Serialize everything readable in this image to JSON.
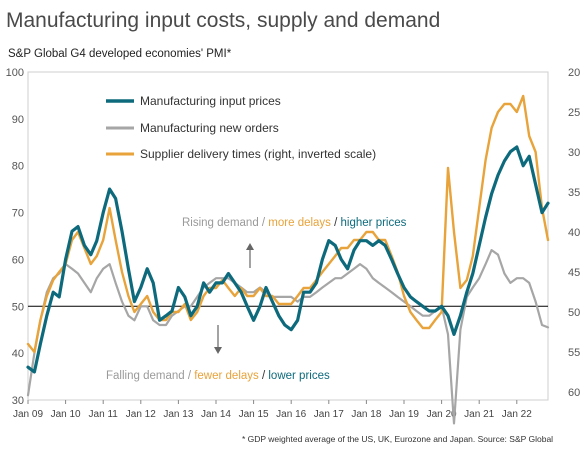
{
  "title": "Manufacturing input costs, supply and demand",
  "subtitle": "S&P Global G4 developed economies' PMI*",
  "footnote": "* GDP weighted average of the US, UK, Eurozone and Japan.   Source: S&P Global",
  "annotations": {
    "top": {
      "part1": "Rising demand / ",
      "part2": "more delays",
      "part3": " / ",
      "part4": "higher prices"
    },
    "bottom": {
      "part1": "Falling demand / ",
      "part2": "fewer delays",
      "part3": " / ",
      "part4": "lower prices"
    }
  },
  "chart_data": {
    "type": "line",
    "x_tick_labels": [
      "Jan 09",
      "Jan 10",
      "Jan 11",
      "Jan 12",
      "Jan 13",
      "Jan 14",
      "Jan 15",
      "Jan 16",
      "Jan 17",
      "Jan 18",
      "Jan 19",
      "Jan 20",
      "Jan 21",
      "Jan 22"
    ],
    "x_range": [
      2009.0,
      2022.83
    ],
    "left_axis": {
      "ylim": [
        30,
        100
      ],
      "ticks": [
        30,
        40,
        50,
        60,
        70,
        80,
        90,
        100
      ]
    },
    "right_axis": {
      "ylim": [
        61,
        20
      ],
      "ticks": [
        20,
        25,
        30,
        35,
        40,
        45,
        50,
        55,
        60
      ],
      "inverted": true
    },
    "reference_line": 50,
    "colors": {
      "input": "#0d6a7c",
      "orders": "#a6a6a6",
      "delivery": "#e8a33a",
      "falling_demand": "#9a9a9a",
      "reference": "#000000"
    },
    "series": [
      {
        "name": "Manufacturing input prices",
        "key": "input",
        "axis": "left",
        "points": [
          [
            2009.0,
            37
          ],
          [
            2009.17,
            36
          ],
          [
            2009.33,
            42
          ],
          [
            2009.5,
            48
          ],
          [
            2009.67,
            53
          ],
          [
            2009.83,
            52
          ],
          [
            2010.0,
            60
          ],
          [
            2010.17,
            66
          ],
          [
            2010.33,
            67
          ],
          [
            2010.5,
            63
          ],
          [
            2010.67,
            61
          ],
          [
            2010.83,
            64
          ],
          [
            2011.0,
            70
          ],
          [
            2011.17,
            75
          ],
          [
            2011.33,
            73
          ],
          [
            2011.5,
            66
          ],
          [
            2011.67,
            58
          ],
          [
            2011.83,
            51
          ],
          [
            2012.0,
            54
          ],
          [
            2012.17,
            58
          ],
          [
            2012.33,
            55
          ],
          [
            2012.5,
            47
          ],
          [
            2012.67,
            48
          ],
          [
            2012.83,
            49
          ],
          [
            2013.0,
            54
          ],
          [
            2013.17,
            52
          ],
          [
            2013.33,
            48
          ],
          [
            2013.5,
            50
          ],
          [
            2013.67,
            55
          ],
          [
            2013.83,
            53
          ],
          [
            2014.0,
            55
          ],
          [
            2014.17,
            55
          ],
          [
            2014.33,
            57
          ],
          [
            2014.5,
            55
          ],
          [
            2014.67,
            53
          ],
          [
            2014.83,
            50
          ],
          [
            2015.0,
            47
          ],
          [
            2015.17,
            50
          ],
          [
            2015.33,
            54
          ],
          [
            2015.5,
            51
          ],
          [
            2015.67,
            48
          ],
          [
            2015.83,
            46
          ],
          [
            2016.0,
            45
          ],
          [
            2016.17,
            47
          ],
          [
            2016.33,
            53
          ],
          [
            2016.5,
            53
          ],
          [
            2016.67,
            55
          ],
          [
            2016.83,
            60
          ],
          [
            2017.0,
            64
          ],
          [
            2017.17,
            63
          ],
          [
            2017.33,
            60
          ],
          [
            2017.5,
            58
          ],
          [
            2017.67,
            62
          ],
          [
            2017.83,
            64
          ],
          [
            2018.0,
            64
          ],
          [
            2018.17,
            63
          ],
          [
            2018.33,
            64
          ],
          [
            2018.5,
            63
          ],
          [
            2018.67,
            60
          ],
          [
            2018.83,
            57
          ],
          [
            2019.0,
            54
          ],
          [
            2019.17,
            52
          ],
          [
            2019.33,
            51
          ],
          [
            2019.5,
            50
          ],
          [
            2019.67,
            49
          ],
          [
            2019.83,
            49
          ],
          [
            2020.0,
            50
          ],
          [
            2020.17,
            48
          ],
          [
            2020.33,
            44
          ],
          [
            2020.5,
            48
          ],
          [
            2020.67,
            53
          ],
          [
            2020.83,
            57
          ],
          [
            2021.0,
            63
          ],
          [
            2021.17,
            69
          ],
          [
            2021.33,
            74
          ],
          [
            2021.5,
            78
          ],
          [
            2021.67,
            81
          ],
          [
            2021.83,
            83
          ],
          [
            2022.0,
            84
          ],
          [
            2022.17,
            80
          ],
          [
            2022.33,
            82
          ],
          [
            2022.5,
            76
          ],
          [
            2022.67,
            70
          ],
          [
            2022.83,
            72
          ]
        ]
      },
      {
        "name": "Manufacturing new orders",
        "key": "orders",
        "axis": "left",
        "points": [
          [
            2009.0,
            31
          ],
          [
            2009.17,
            40
          ],
          [
            2009.33,
            47
          ],
          [
            2009.5,
            53
          ],
          [
            2009.67,
            56
          ],
          [
            2009.83,
            57
          ],
          [
            2010.0,
            59
          ],
          [
            2010.17,
            58
          ],
          [
            2010.33,
            57
          ],
          [
            2010.5,
            55
          ],
          [
            2010.67,
            53
          ],
          [
            2010.83,
            56
          ],
          [
            2011.0,
            58
          ],
          [
            2011.17,
            59
          ],
          [
            2011.33,
            55
          ],
          [
            2011.5,
            51
          ],
          [
            2011.67,
            48
          ],
          [
            2011.83,
            47
          ],
          [
            2012.0,
            50
          ],
          [
            2012.17,
            50
          ],
          [
            2012.33,
            47
          ],
          [
            2012.5,
            46
          ],
          [
            2012.67,
            46
          ],
          [
            2012.83,
            48
          ],
          [
            2013.0,
            49
          ],
          [
            2013.17,
            50
          ],
          [
            2013.33,
            50
          ],
          [
            2013.5,
            52
          ],
          [
            2013.67,
            54
          ],
          [
            2013.83,
            55
          ],
          [
            2014.0,
            56
          ],
          [
            2014.17,
            56
          ],
          [
            2014.33,
            56
          ],
          [
            2014.5,
            55
          ],
          [
            2014.67,
            54
          ],
          [
            2014.83,
            53
          ],
          [
            2015.0,
            53
          ],
          [
            2015.17,
            54
          ],
          [
            2015.33,
            53
          ],
          [
            2015.5,
            52
          ],
          [
            2015.67,
            52
          ],
          [
            2015.83,
            52
          ],
          [
            2016.0,
            52
          ],
          [
            2016.17,
            51
          ],
          [
            2016.33,
            52
          ],
          [
            2016.5,
            52
          ],
          [
            2016.67,
            53
          ],
          [
            2016.83,
            54
          ],
          [
            2017.0,
            55
          ],
          [
            2017.17,
            56
          ],
          [
            2017.33,
            56
          ],
          [
            2017.5,
            57
          ],
          [
            2017.67,
            58
          ],
          [
            2017.83,
            59
          ],
          [
            2018.0,
            58
          ],
          [
            2018.17,
            56
          ],
          [
            2018.33,
            55
          ],
          [
            2018.5,
            54
          ],
          [
            2018.67,
            53
          ],
          [
            2018.83,
            52
          ],
          [
            2019.0,
            51
          ],
          [
            2019.17,
            50
          ],
          [
            2019.33,
            49
          ],
          [
            2019.5,
            48
          ],
          [
            2019.67,
            48
          ],
          [
            2019.83,
            49
          ],
          [
            2020.0,
            50
          ],
          [
            2020.17,
            44
          ],
          [
            2020.33,
            25
          ],
          [
            2020.5,
            45
          ],
          [
            2020.67,
            52
          ],
          [
            2020.83,
            54
          ],
          [
            2021.0,
            56
          ],
          [
            2021.17,
            59
          ],
          [
            2021.33,
            62
          ],
          [
            2021.5,
            61
          ],
          [
            2021.67,
            57
          ],
          [
            2021.83,
            55
          ],
          [
            2022.0,
            56
          ],
          [
            2022.17,
            56
          ],
          [
            2022.33,
            55
          ],
          [
            2022.5,
            51
          ],
          [
            2022.67,
            46
          ],
          [
            2022.83,
            45.5
          ]
        ]
      },
      {
        "name": "Supplier delivery times (right, inverted scale)",
        "key": "delivery",
        "axis": "right",
        "points": [
          [
            2009.0,
            54
          ],
          [
            2009.17,
            55
          ],
          [
            2009.33,
            51
          ],
          [
            2009.5,
            48
          ],
          [
            2009.67,
            46
          ],
          [
            2009.83,
            45
          ],
          [
            2010.0,
            44
          ],
          [
            2010.17,
            41
          ],
          [
            2010.33,
            40
          ],
          [
            2010.5,
            42
          ],
          [
            2010.67,
            44
          ],
          [
            2010.83,
            43
          ],
          [
            2011.0,
            41
          ],
          [
            2011.17,
            37
          ],
          [
            2011.33,
            41
          ],
          [
            2011.5,
            45
          ],
          [
            2011.67,
            48
          ],
          [
            2011.83,
            50
          ],
          [
            2012.0,
            49
          ],
          [
            2012.17,
            48
          ],
          [
            2012.33,
            50
          ],
          [
            2012.5,
            51
          ],
          [
            2012.67,
            51
          ],
          [
            2012.83,
            50
          ],
          [
            2013.0,
            50
          ],
          [
            2013.17,
            49
          ],
          [
            2013.33,
            51
          ],
          [
            2013.5,
            50
          ],
          [
            2013.67,
            48
          ],
          [
            2013.83,
            47
          ],
          [
            2014.0,
            47
          ],
          [
            2014.17,
            46
          ],
          [
            2014.33,
            47
          ],
          [
            2014.5,
            48
          ],
          [
            2014.67,
            47
          ],
          [
            2014.83,
            48
          ],
          [
            2015.0,
            48
          ],
          [
            2015.17,
            47
          ],
          [
            2015.33,
            48
          ],
          [
            2015.5,
            48
          ],
          [
            2015.67,
            49
          ],
          [
            2015.83,
            49
          ],
          [
            2016.0,
            49
          ],
          [
            2016.17,
            48
          ],
          [
            2016.33,
            47
          ],
          [
            2016.5,
            47
          ],
          [
            2016.67,
            46
          ],
          [
            2016.83,
            45
          ],
          [
            2017.0,
            44
          ],
          [
            2017.17,
            43
          ],
          [
            2017.33,
            42
          ],
          [
            2017.5,
            42
          ],
          [
            2017.67,
            41
          ],
          [
            2017.83,
            41
          ],
          [
            2018.0,
            40
          ],
          [
            2018.17,
            40
          ],
          [
            2018.33,
            41
          ],
          [
            2018.5,
            41
          ],
          [
            2018.67,
            43
          ],
          [
            2018.83,
            45
          ],
          [
            2019.0,
            48
          ],
          [
            2019.17,
            50
          ],
          [
            2019.33,
            51
          ],
          [
            2019.5,
            52
          ],
          [
            2019.67,
            52
          ],
          [
            2019.83,
            51
          ],
          [
            2020.0,
            50
          ],
          [
            2020.17,
            32
          ],
          [
            2020.33,
            40
          ],
          [
            2020.5,
            47
          ],
          [
            2020.67,
            46
          ],
          [
            2020.83,
            43
          ],
          [
            2021.0,
            37
          ],
          [
            2021.17,
            31
          ],
          [
            2021.33,
            27
          ],
          [
            2021.5,
            25
          ],
          [
            2021.67,
            24
          ],
          [
            2021.83,
            24
          ],
          [
            2022.0,
            25
          ],
          [
            2022.17,
            23
          ],
          [
            2022.33,
            28
          ],
          [
            2022.5,
            30
          ],
          [
            2022.67,
            37
          ],
          [
            2022.83,
            41
          ]
        ]
      }
    ],
    "legend_placement": "top-left"
  }
}
